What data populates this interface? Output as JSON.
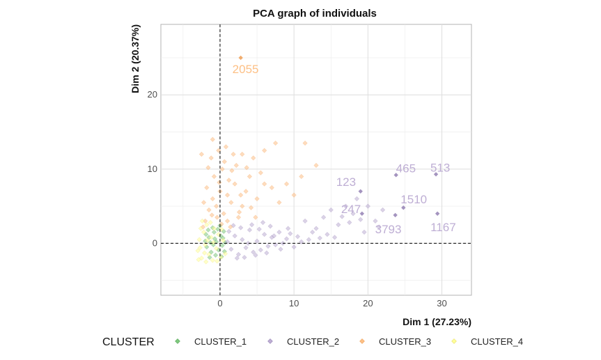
{
  "chart_data": {
    "type": "scatter",
    "title": "PCA graph of individuals",
    "xlabel": "Dim 1 (27.23%)",
    "ylabel": "Dim 2 (20.37%)",
    "xlim": [
      -8,
      34
    ],
    "ylim": [
      -7,
      29.5
    ],
    "x_ticks": [
      0,
      10,
      20,
      30
    ],
    "y_ticks": [
      0,
      10,
      20
    ],
    "grid": true,
    "reference_lines": {
      "x": 0,
      "y": 0,
      "style": "dashed"
    },
    "legend": {
      "title": "CLUSTER",
      "position": "bottom",
      "entries": [
        "CLUSTER_1",
        "CLUSTER_2",
        "CLUSTER_3",
        "CLUSTER_4"
      ]
    },
    "colors": {
      "CLUSTER_1": "#7fc97f",
      "CLUSTER_2": "#beaed4",
      "CLUSTER_3": "#fdc086",
      "CLUSTER_4": "#ffff99"
    },
    "series": [
      {
        "name": "CLUSTER_1",
        "points": [
          [
            -1.8,
            -0.5
          ],
          [
            -1.5,
            0.8
          ],
          [
            -1.2,
            -1.2
          ],
          [
            -0.8,
            1.5
          ],
          [
            -0.5,
            0.2
          ],
          [
            -0.2,
            -0.9
          ],
          [
            0.1,
            1.0
          ],
          [
            0.3,
            -0.3
          ],
          [
            -1.0,
            2.1
          ],
          [
            -1.6,
            1.8
          ],
          [
            -0.6,
            -1.6
          ],
          [
            0.4,
            0.7
          ],
          [
            -1.3,
            0.1
          ],
          [
            0.0,
            2.4
          ],
          [
            -0.9,
            -0.2
          ],
          [
            0.6,
            -1.1
          ],
          [
            -1.9,
            1.2
          ],
          [
            -0.3,
            1.9
          ],
          [
            0.2,
            -1.8
          ],
          [
            -1.4,
            -1.9
          ],
          [
            0.5,
            1.6
          ],
          [
            -0.7,
            0.6
          ],
          [
            -2.0,
            0.3
          ],
          [
            0.7,
            0.1
          ]
        ]
      },
      {
        "name": "CLUSTER_2",
        "points": [
          [
            1.0,
            0.2
          ],
          [
            1.5,
            -0.8
          ],
          [
            2.0,
            1.0
          ],
          [
            2.5,
            -1.5
          ],
          [
            3.0,
            0.5
          ],
          [
            3.5,
            -0.6
          ],
          [
            4.0,
            1.8
          ],
          [
            4.5,
            -1.2
          ],
          [
            5.0,
            0.3
          ],
          [
            5.5,
            -0.9
          ],
          [
            6.0,
            1.2
          ],
          [
            6.5,
            -0.4
          ],
          [
            7.0,
            0.8
          ],
          [
            7.5,
            -0.2
          ],
          [
            8.0,
            1.5
          ],
          [
            8.5,
            0.0
          ],
          [
            9.0,
            0.6
          ],
          [
            9.5,
            1.3
          ],
          [
            10.0,
            -0.5
          ],
          [
            10.5,
            0.9
          ],
          [
            11.0,
            0.2
          ],
          [
            1.2,
            1.6
          ],
          [
            1.8,
            2.4
          ],
          [
            2.3,
            -2.0
          ],
          [
            2.8,
            2.1
          ],
          [
            3.3,
            -1.9
          ],
          [
            3.8,
            0.0
          ],
          [
            4.3,
            2.5
          ],
          [
            4.8,
            -1.6
          ],
          [
            5.3,
            1.9
          ],
          [
            5.8,
            2.8
          ],
          [
            6.3,
            -1.3
          ],
          [
            6.8,
            2.3
          ],
          [
            7.3,
            1.0
          ],
          [
            8.2,
            -0.8
          ],
          [
            9.2,
            2.0
          ],
          [
            11.5,
            3.0
          ],
          [
            12.0,
            0.5
          ],
          [
            13.0,
            2.0
          ],
          [
            14.0,
            3.5
          ],
          [
            14.5,
            1.2
          ],
          [
            15.0,
            4.5
          ],
          [
            16.0,
            2.5
          ],
          [
            17.0,
            5.0
          ],
          [
            17.5,
            2.8
          ],
          [
            18.0,
            4.0
          ],
          [
            18.5,
            6.0
          ],
          [
            19.0,
            3.2
          ],
          [
            20.0,
            5.0
          ],
          [
            21.0,
            3.0
          ],
          [
            22.0,
            4.5
          ],
          [
            15.5,
            0.8
          ],
          [
            12.5,
            1.5
          ],
          [
            13.5,
            0.7
          ],
          [
            16.5,
            3.6
          ],
          [
            19.5,
            1.5
          ],
          [
            21.5,
            2.2
          ]
        ]
      },
      {
        "name": "CLUSTER_3",
        "points": [
          [
            -2.0,
            3.0
          ],
          [
            -1.5,
            4.5
          ],
          [
            -1.0,
            6.0
          ],
          [
            -0.5,
            5.0
          ],
          [
            0.0,
            7.0
          ],
          [
            0.5,
            4.0
          ],
          [
            1.0,
            6.5
          ],
          [
            1.5,
            5.5
          ],
          [
            2.0,
            8.0
          ],
          [
            2.5,
            3.5
          ],
          [
            3.0,
            5.0
          ],
          [
            -1.8,
            7.5
          ],
          [
            -0.8,
            9.0
          ],
          [
            0.3,
            10.0
          ],
          [
            1.2,
            8.5
          ],
          [
            2.2,
            10.5
          ],
          [
            3.5,
            7.0
          ],
          [
            4.0,
            9.0
          ],
          [
            5.0,
            6.0
          ],
          [
            6.0,
            8.0
          ],
          [
            7.0,
            7.5
          ],
          [
            8.0,
            5.5
          ],
          [
            9.0,
            8.0
          ],
          [
            10.0,
            6.5
          ],
          [
            11.0,
            9.0
          ],
          [
            -2.5,
            12.0
          ],
          [
            -1.2,
            11.5
          ],
          [
            -0.2,
            12.5
          ],
          [
            0.8,
            13.0
          ],
          [
            1.8,
            12.0
          ],
          [
            -1.0,
            14.0
          ],
          [
            0.6,
            11.0
          ],
          [
            3.0,
            12.0
          ],
          [
            4.5,
            11.5
          ],
          [
            6.0,
            12.5
          ],
          [
            7.5,
            13.5
          ],
          [
            11.5,
            13.5
          ],
          [
            13.0,
            10.5
          ],
          [
            -2.2,
            5.5
          ],
          [
            -0.4,
            3.5
          ],
          [
            1.0,
            3.0
          ],
          [
            2.8,
            6.5
          ],
          [
            4.2,
            4.8
          ],
          [
            5.5,
            9.5
          ],
          [
            -1.6,
            10.2
          ],
          [
            -0.1,
            8.2
          ],
          [
            1.6,
            9.8
          ],
          [
            3.6,
            10.2
          ],
          [
            -2.3,
            2.2
          ],
          [
            0.2,
            2.6
          ],
          [
            1.4,
            2.2
          ],
          [
            -1.1,
            3.8
          ],
          [
            2.6,
            4.2
          ],
          [
            4.8,
            3.5
          ]
        ]
      },
      {
        "name": "CLUSTER_4",
        "points": [
          [
            -3.0,
            -1.0
          ],
          [
            -2.8,
            0.5
          ],
          [
            -2.5,
            -2.0
          ],
          [
            -2.2,
            1.5
          ],
          [
            -2.0,
            -0.2
          ],
          [
            -1.8,
            2.5
          ],
          [
            -1.5,
            -1.5
          ],
          [
            -1.2,
            0.8
          ],
          [
            -1.0,
            -2.3
          ],
          [
            -0.8,
            2.0
          ],
          [
            -0.5,
            -0.7
          ],
          [
            -0.2,
            1.2
          ],
          [
            0.1,
            -1.9
          ],
          [
            0.4,
            0.4
          ],
          [
            0.7,
            -1.4
          ],
          [
            -2.6,
            2.0
          ],
          [
            -2.9,
            -2.2
          ],
          [
            -2.4,
            3.0
          ],
          [
            -1.9,
            -2.5
          ],
          [
            -1.3,
            2.8
          ],
          [
            -0.9,
            0.1
          ],
          [
            -0.4,
            -2.4
          ],
          [
            0.2,
            1.9
          ],
          [
            -2.7,
            -0.6
          ],
          [
            -1.7,
            0.4
          ],
          [
            -2.1,
            -1.3
          ]
        ]
      }
    ],
    "labeled_points": [
      {
        "label": "2055",
        "x": 2.8,
        "y": 25.0,
        "series": "CLUSTER_3"
      },
      {
        "label": "123",
        "x": 19.0,
        "y": 7.0,
        "series": "CLUSTER_2"
      },
      {
        "label": "465",
        "x": 23.8,
        "y": 9.2,
        "series": "CLUSTER_2"
      },
      {
        "label": "513",
        "x": 29.2,
        "y": 9.3,
        "series": "CLUSTER_2"
      },
      {
        "label": "247",
        "x": 19.2,
        "y": 4.0,
        "series": "CLUSTER_2"
      },
      {
        "label": "1510",
        "x": 24.8,
        "y": 4.8,
        "series": "CLUSTER_2"
      },
      {
        "label": "3793",
        "x": 23.7,
        "y": 3.8,
        "series": "CLUSTER_2"
      },
      {
        "label": "1167",
        "x": 29.4,
        "y": 4.0,
        "series": "CLUSTER_2"
      }
    ]
  }
}
